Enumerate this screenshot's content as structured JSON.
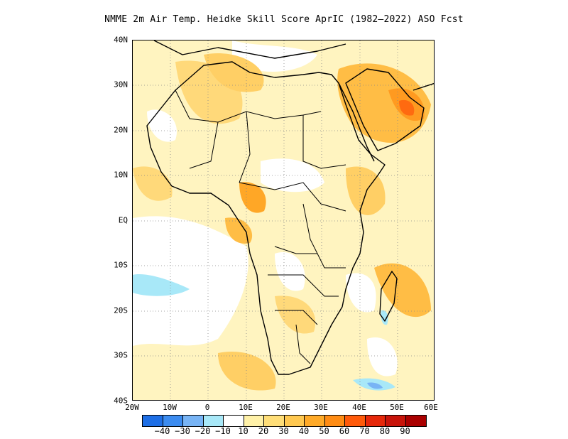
{
  "title": "NMME  2m Air Temp. Heidke Skill Score AprIC (1982–2022) ASO Fcst",
  "map": {
    "region": "Africa and Middle East",
    "lat_labels": [
      "40N",
      "30N",
      "20N",
      "10N",
      "EQ",
      "10S",
      "20S",
      "30S",
      "40S"
    ],
    "lon_labels": [
      "20W",
      "10W",
      "0",
      "10E",
      "20E",
      "30E",
      "40E",
      "50E",
      "60E"
    ],
    "grid": "dotted",
    "background": "#ffffff",
    "coastline_color": "#000000"
  },
  "colorbar": {
    "colors": [
      "#1e6fe6",
      "#3c8cf0",
      "#78b4f5",
      "#a8e8f8",
      "#ffffff",
      "#fff1a8",
      "#ffde78",
      "#ffc850",
      "#ffaa28",
      "#ff8c14",
      "#ff5a0a",
      "#e6280a",
      "#c8140a",
      "#aa0000"
    ],
    "labels": [
      "−40",
      "−30",
      "−20",
      "−10",
      "10",
      "20",
      "30",
      "40",
      "50",
      "60",
      "70",
      "80",
      "90"
    ]
  }
}
